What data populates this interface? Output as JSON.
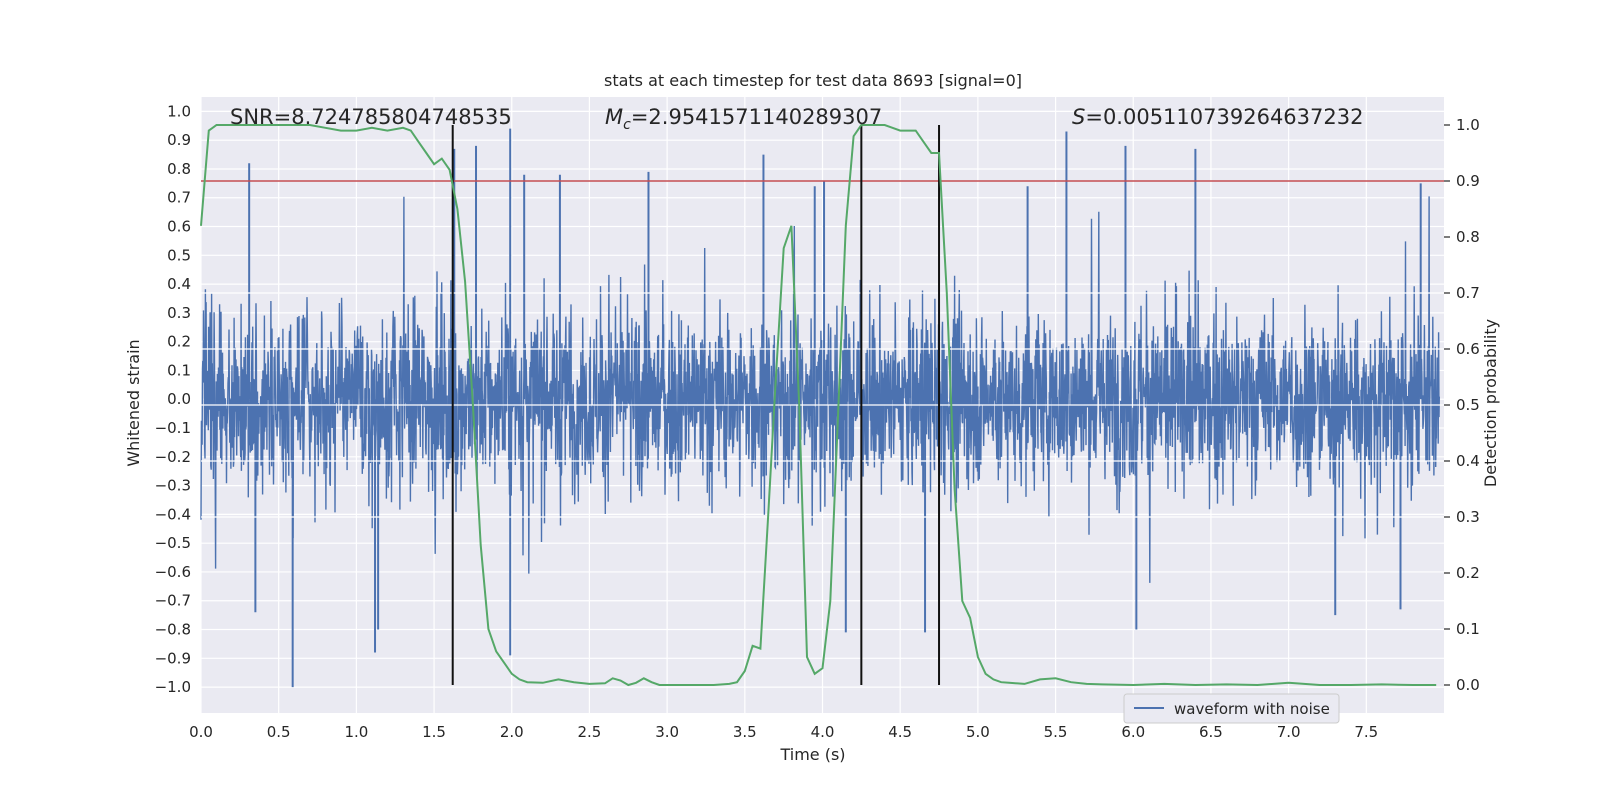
{
  "chart_data": {
    "type": "line",
    "title": "stats at each timestep for test data 8693 [signal=0]",
    "xlabel": "Time (s)",
    "ylabel": "Whitened strain",
    "y2label": "Detection probability",
    "xlim": [
      0.0,
      8.0
    ],
    "ylim": [
      -1.09,
      1.05
    ],
    "y2lim": [
      -0.05,
      1.05
    ],
    "xticks": [
      0.0,
      0.5,
      1.0,
      1.5,
      2.0,
      2.5,
      3.0,
      3.5,
      4.0,
      4.5,
      5.0,
      5.5,
      6.0,
      6.5,
      7.0,
      7.5
    ],
    "yticks": [
      1.0,
      0.9,
      0.8,
      0.7,
      0.6,
      0.5,
      0.4,
      0.3,
      0.2,
      0.1,
      0.0,
      -0.1,
      -0.2,
      -0.3,
      -0.4,
      -0.5,
      -0.6,
      -0.7,
      -0.8,
      -0.9,
      -1.0
    ],
    "y2ticks": [
      1.0,
      0.9,
      0.8,
      0.7,
      0.6,
      0.5,
      0.4,
      0.3,
      0.2,
      0.1,
      0.0
    ],
    "annotations": {
      "snr": "SNR=8.724785804748535",
      "mc_symbol": "M",
      "mc_sub": "c",
      "mc_value": "=2.9541571140289307",
      "s_symbol": "S",
      "s_value": "=0.005110739264637232"
    },
    "threshold": {
      "axis": "right",
      "value": 0.9,
      "color": "#c44e52"
    },
    "vertical_lines": [
      1.62,
      4.25,
      4.75
    ],
    "legend": {
      "label": "waveform with noise",
      "location": "lower-right"
    },
    "series": [
      {
        "name": "waveform with noise",
        "axis": "left",
        "color": "#4c72b0",
        "description": "dense whitened strain noise, sampled 0-8 s",
        "spikes": [
          [
            0.31,
            0.82
          ],
          [
            0.59,
            -1.0
          ],
          [
            1.12,
            -0.88
          ],
          [
            1.63,
            0.87
          ],
          [
            1.77,
            0.88
          ],
          [
            1.99,
            0.94
          ],
          [
            1.99,
            -0.89
          ],
          [
            2.31,
            0.78
          ],
          [
            2.88,
            0.79
          ],
          [
            3.62,
            0.85
          ],
          [
            3.95,
            0.74
          ],
          [
            4.01,
            0.76
          ],
          [
            4.15,
            -0.81
          ],
          [
            4.66,
            -0.81
          ],
          [
            5.57,
            0.93
          ],
          [
            5.95,
            0.88
          ],
          [
            6.02,
            -0.8
          ],
          [
            6.4,
            0.87
          ],
          [
            7.3,
            -0.75
          ],
          [
            7.72,
            -0.73
          ],
          [
            7.85,
            0.75
          ],
          [
            0.35,
            -0.74
          ],
          [
            1.14,
            -0.8
          ],
          [
            2.08,
            0.78
          ],
          [
            5.32,
            0.74
          ]
        ]
      },
      {
        "name": "detection probability",
        "axis": "right",
        "color": "#55a868",
        "x": [
          0.0,
          0.05,
          0.1,
          0.2,
          0.3,
          0.5,
          0.7,
          0.8,
          0.9,
          1.0,
          1.1,
          1.2,
          1.3,
          1.35,
          1.4,
          1.45,
          1.5,
          1.55,
          1.6,
          1.65,
          1.7,
          1.75,
          1.8,
          1.85,
          1.9,
          1.95,
          2.0,
          2.05,
          2.1,
          2.2,
          2.3,
          2.4,
          2.5,
          2.6,
          2.65,
          2.7,
          2.75,
          2.8,
          2.85,
          2.9,
          2.95,
          3.0,
          3.1,
          3.2,
          3.3,
          3.4,
          3.45,
          3.5,
          3.55,
          3.6,
          3.65,
          3.7,
          3.75,
          3.8,
          3.85,
          3.9,
          3.95,
          4.0,
          4.05,
          4.1,
          4.15,
          4.2,
          4.25,
          4.3,
          4.35,
          4.4,
          4.5,
          4.6,
          4.65,
          4.7,
          4.75,
          4.8,
          4.85,
          4.9,
          4.95,
          5.0,
          5.05,
          5.1,
          5.15,
          5.2,
          5.3,
          5.4,
          5.5,
          5.6,
          5.7,
          5.8,
          6.0,
          6.2,
          6.4,
          6.6,
          6.8,
          7.0,
          7.2,
          7.4,
          7.6,
          7.8,
          7.95
        ],
        "values": [
          0.82,
          0.99,
          1.0,
          1.0,
          1.0,
          1.0,
          1.0,
          0.995,
          0.99,
          0.99,
          0.995,
          0.99,
          0.995,
          0.99,
          0.97,
          0.95,
          0.93,
          0.94,
          0.92,
          0.85,
          0.72,
          0.5,
          0.25,
          0.1,
          0.06,
          0.04,
          0.02,
          0.01,
          0.005,
          0.004,
          0.01,
          0.005,
          0.002,
          0.003,
          0.012,
          0.008,
          0.0,
          0.004,
          0.012,
          0.005,
          0.0,
          0.0,
          0.0,
          0.0,
          0.0,
          0.002,
          0.005,
          0.025,
          0.07,
          0.065,
          0.3,
          0.55,
          0.78,
          0.82,
          0.5,
          0.05,
          0.02,
          0.03,
          0.15,
          0.48,
          0.82,
          0.98,
          1.0,
          1.0,
          1.0,
          1.0,
          0.99,
          0.99,
          0.97,
          0.95,
          0.95,
          0.7,
          0.35,
          0.15,
          0.12,
          0.05,
          0.02,
          0.01,
          0.005,
          0.004,
          0.002,
          0.01,
          0.012,
          0.005,
          0.002,
          0.001,
          0.0,
          0.002,
          0.0,
          0.001,
          0.0,
          0.004,
          0.0,
          0.0,
          0.001,
          0.0,
          0.0
        ]
      }
    ]
  }
}
